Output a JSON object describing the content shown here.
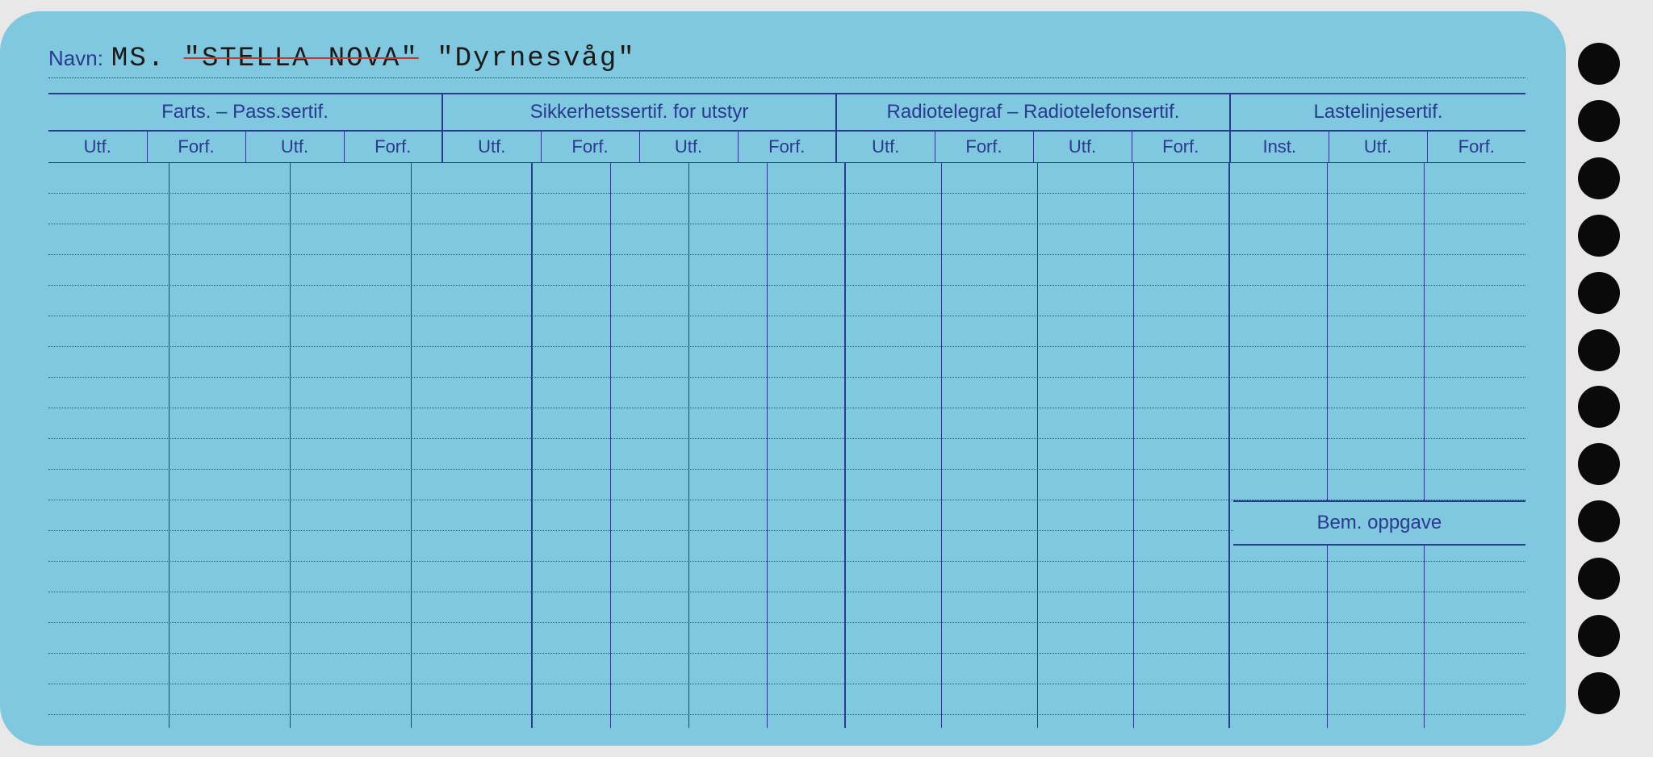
{
  "card": {
    "name_label": "Navn:",
    "name_prefix": "MS.",
    "name_struck": "\"STELLA NOVA\"",
    "name_current": "\"Dyrnesvåg\"",
    "bem_label": "Bem. oppgave"
  },
  "columns": {
    "groups": [
      {
        "label": "Farts. – Pass.sertif.",
        "span": 4,
        "widths": [
          8.2,
          8.2,
          8.2,
          8.2
        ]
      },
      {
        "label": "Sikkerhetssertif. for utstyr",
        "span": 4,
        "widths": [
          5.3,
          5.3,
          5.3,
          5.3
        ]
      },
      {
        "label": "Radiotelegraf – Radiotelefonsertif.",
        "span": 4,
        "widths": [
          6.5,
          6.5,
          6.5,
          6.5
        ]
      },
      {
        "label": "Lastelinjesertif.",
        "span": 3,
        "widths": [
          6.6,
          6.6,
          6.6
        ]
      }
    ],
    "subheaders": [
      "Utf.",
      "Forf.",
      "Utf.",
      "Forf.",
      "Utf.",
      "Forf.",
      "Utf.",
      "Forf.",
      "Utf.",
      "Forf.",
      "Utf.",
      "Forf.",
      "Inst.",
      "Utf.",
      "Forf."
    ]
  },
  "style": {
    "card_bg": "#7fc8e0",
    "line_color": "#2a3a8f",
    "dotted_color": "#3a4a9f",
    "strike_color": "#c0392b",
    "hole_color": "#0a0a0a",
    "text_color": "#2a3a8f",
    "typed_text_color": "#1a1a1a",
    "body_rows": 18,
    "holes_count": 12,
    "last_group_width_pct": 19.8
  }
}
